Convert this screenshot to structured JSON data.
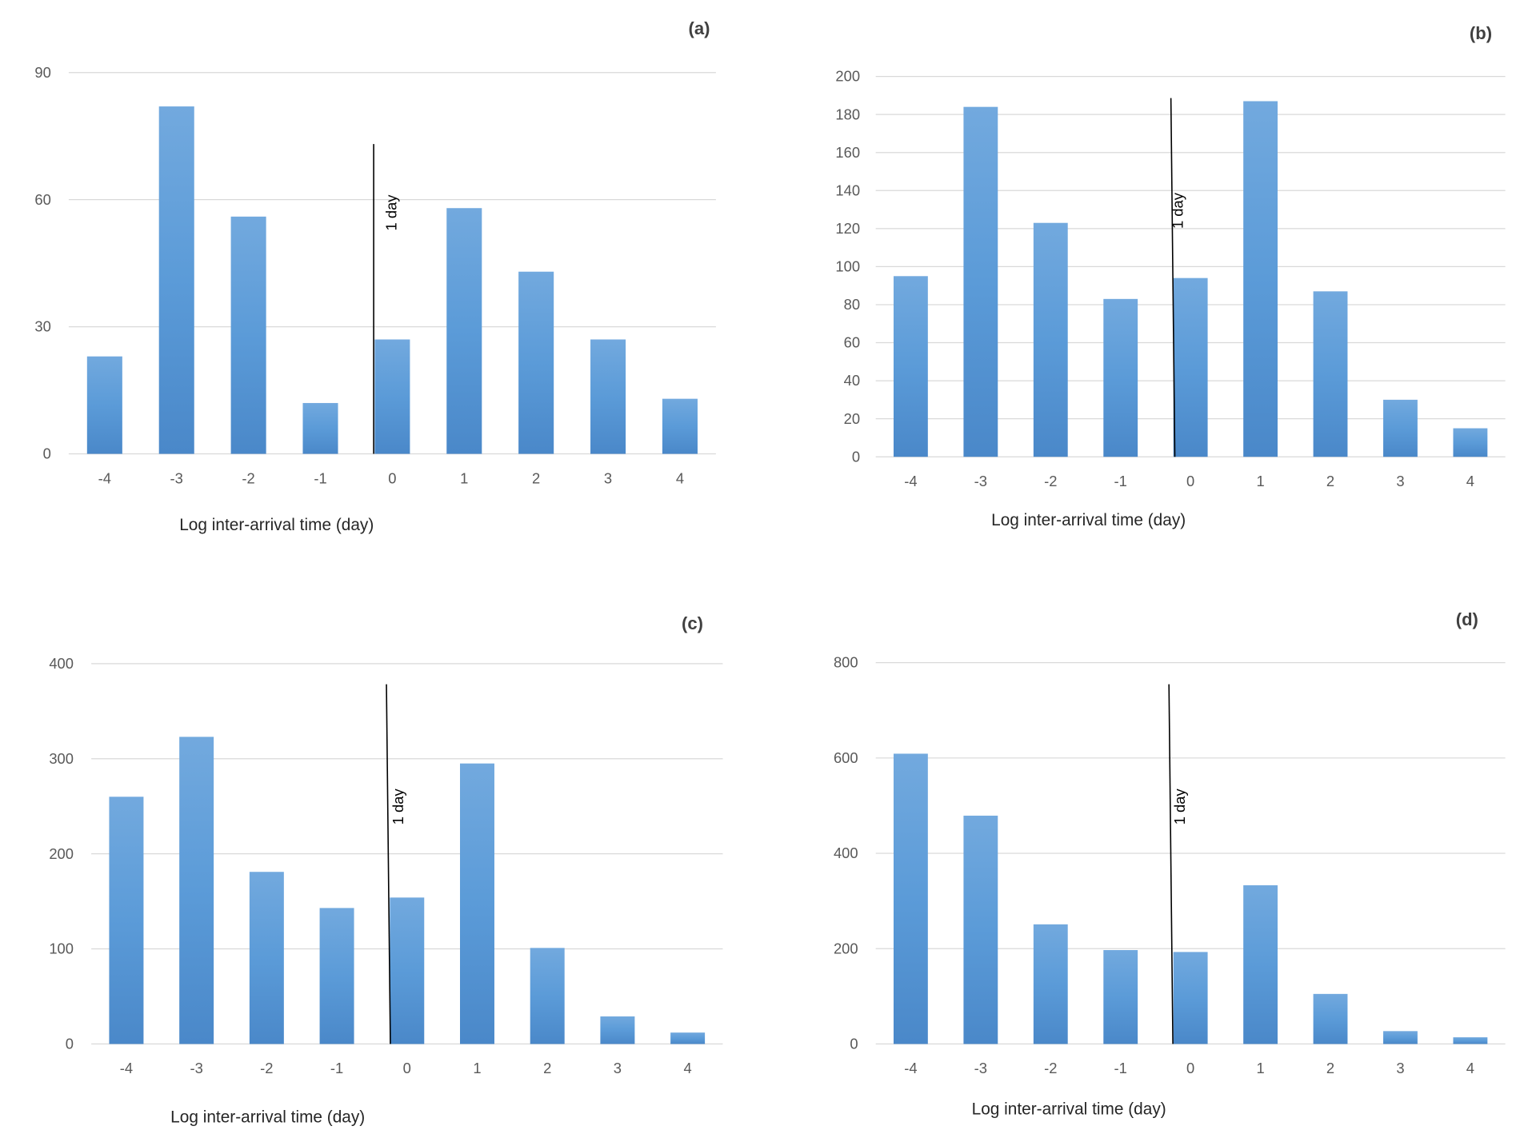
{
  "chart_data": [
    {
      "type": "bar",
      "panel_label": "(a)",
      "categories": [
        "-4",
        "-3",
        "-2",
        "-1",
        "0",
        "1",
        "2",
        "3",
        "4"
      ],
      "values": [
        23,
        82,
        56,
        12,
        27,
        58,
        43,
        27,
        13
      ],
      "xlabel": "Log inter-arrival time (day)",
      "ylabel": "",
      "ylim": [
        0,
        90
      ],
      "yticks": [
        0,
        30,
        60,
        90
      ],
      "annotation": "1 day",
      "grid": true
    },
    {
      "type": "bar",
      "panel_label": "(b)",
      "categories": [
        "-4",
        "-3",
        "-2",
        "-1",
        "0",
        "1",
        "2",
        "3",
        "4"
      ],
      "values": [
        95,
        184,
        123,
        83,
        94,
        187,
        87,
        30,
        15
      ],
      "xlabel": "Log inter-arrival time (day)",
      "ylabel": "",
      "ylim": [
        0,
        200
      ],
      "yticks": [
        0,
        20,
        40,
        60,
        80,
        100,
        120,
        140,
        160,
        180,
        200
      ],
      "annotation": "1 day",
      "grid": true
    },
    {
      "type": "bar",
      "panel_label": "(c)",
      "categories": [
        "-4",
        "-3",
        "-2",
        "-1",
        "0",
        "1",
        "2",
        "3",
        "4"
      ],
      "values": [
        260,
        323,
        181,
        143,
        154,
        295,
        101,
        29,
        12
      ],
      "xlabel": "Log inter-arrival time (day)",
      "ylabel": "",
      "ylim": [
        0,
        400
      ],
      "yticks": [
        0,
        100,
        200,
        300,
        400
      ],
      "annotation": "1 day",
      "grid": true
    },
    {
      "type": "bar",
      "panel_label": "(d)",
      "categories": [
        "-4",
        "-3",
        "-2",
        "-1",
        "0",
        "1",
        "2",
        "3",
        "4"
      ],
      "values": [
        609,
        479,
        251,
        197,
        193,
        333,
        105,
        27,
        14
      ],
      "xlabel": "Log inter-arrival time (day)",
      "ylabel": "",
      "ylim": [
        0,
        800
      ],
      "yticks": [
        0,
        200,
        400,
        600,
        800
      ],
      "annotation": "1 day",
      "grid": true
    }
  ],
  "colors": {
    "bar_top": "#72a9de",
    "bar_bottom": "#4a88c9",
    "grid": "#d9d9d9"
  }
}
